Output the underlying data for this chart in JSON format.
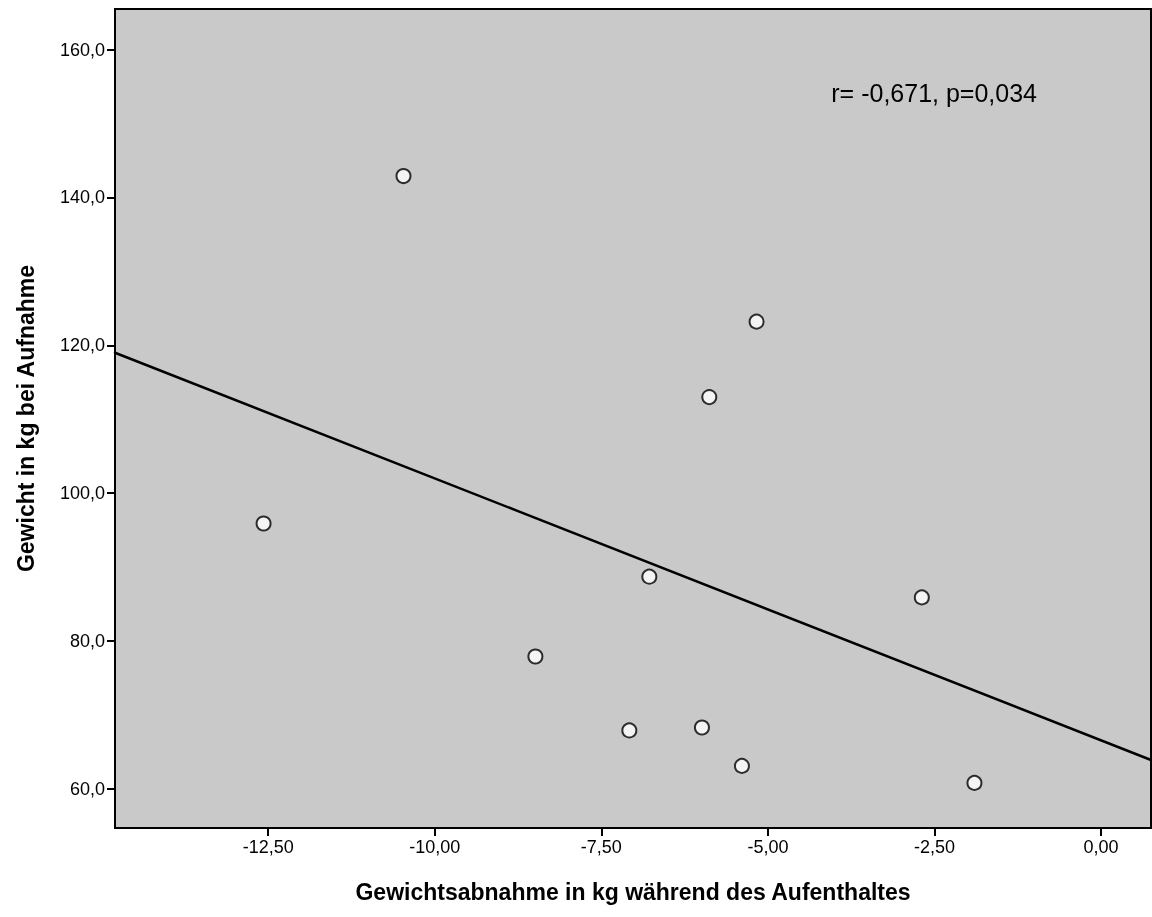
{
  "chart_data": {
    "type": "scatter",
    "xlabel": "Gewichtsabnahme in kg während des Aufenthaltes",
    "ylabel": "Gewicht in kg bei Aufnahme",
    "annotations": [
      "r= -0,671, p=0,034"
    ],
    "x": [
      -12.57,
      -10.47,
      -8.49,
      -7.08,
      -6.78,
      -5.99,
      -5.88,
      -5.39,
      -5.17,
      -2.69,
      -1.9
    ],
    "series": [
      {
        "color": "#000000",
        "marker": "circle",
        "values": [
          95.9,
          142.9,
          77.9,
          67.9,
          88.7,
          68.3,
          113.0,
          63.1,
          123.2,
          85.9,
          60.8
        ]
      },
      {
        "type": "line",
        "color": "#000000",
        "x": [
          -14.8,
          0.75
        ],
        "values": [
          119.0,
          63.9
        ],
        "marker": "none",
        "line_style": "solid"
      }
    ],
    "xlim": [
      -14.8,
      0.75
    ],
    "ylim": [
      54.7,
      165.5
    ],
    "xticks": [
      {
        "value": -12.5,
        "label": "-12,50"
      },
      {
        "value": -10,
        "label": "-10,00"
      },
      {
        "value": -7.5,
        "label": "-7,50"
      },
      {
        "value": -5,
        "label": "-5,00"
      },
      {
        "value": -2.5,
        "label": "-2,50"
      },
      {
        "value": 0,
        "label": "0,00"
      }
    ],
    "yticks": [
      {
        "value": 60,
        "label": "60,0"
      },
      {
        "value": 80,
        "label": "80,0"
      },
      {
        "value": 100,
        "label": "100,0"
      },
      {
        "value": 120,
        "label": "120,0"
      },
      {
        "value": 140,
        "label": "140,0"
      },
      {
        "value": 160,
        "label": "160,0"
      }
    ],
    "grid": false
  }
}
